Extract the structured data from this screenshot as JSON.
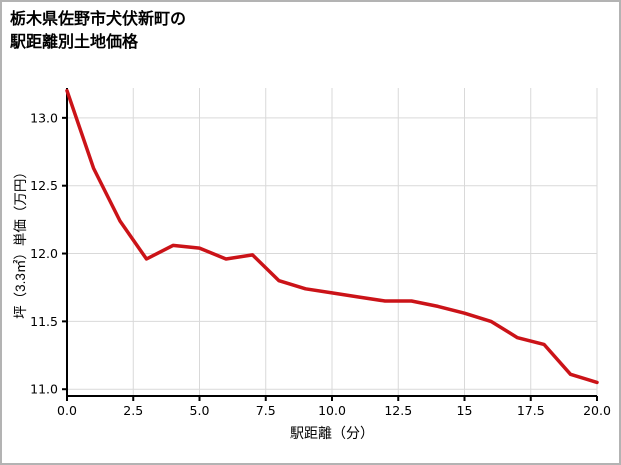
{
  "figure": {
    "title_line1": "栃木県佐野市犬伏新町の",
    "title_line2": "駅距離別土地価格"
  },
  "chart_data": {
    "type": "line",
    "title": "栃木県佐野市犬伏新町の駅距離別土地価格",
    "xlabel": "駅距離（分）",
    "ylabel": "坪（3.3㎡）単価（万円）",
    "x": [
      0,
      1,
      2,
      3,
      4,
      5,
      6,
      7,
      8,
      9,
      10,
      11,
      12,
      13,
      14,
      15,
      16,
      17,
      18,
      19,
      20
    ],
    "y": [
      13.2,
      12.63,
      12.24,
      11.96,
      12.06,
      12.04,
      11.96,
      11.99,
      11.8,
      11.74,
      11.71,
      11.68,
      11.65,
      11.65,
      11.61,
      11.56,
      11.5,
      11.38,
      11.33,
      11.11,
      11.05
    ],
    "xlim": [
      0,
      20
    ],
    "ylim": [
      10.95,
      13.22
    ],
    "xticks": [
      0,
      2.5,
      5,
      7.5,
      10,
      12.5,
      15,
      17.5,
      20
    ],
    "xtick_labels": [
      "0.0",
      "2.5",
      "5.0",
      "7.5",
      "10.0",
      "12.5",
      "15",
      "17.5",
      "20.0"
    ],
    "yticks": [
      11.0,
      11.5,
      12.0,
      12.5,
      13.0
    ],
    "ytick_labels": [
      "11.0",
      "11.5",
      "12.0",
      "12.5",
      "13.0"
    ],
    "grid": true,
    "legend": "none",
    "line_color": "#cb1318",
    "grid_color": "#d9d9d9",
    "axis_color": "#000000"
  }
}
